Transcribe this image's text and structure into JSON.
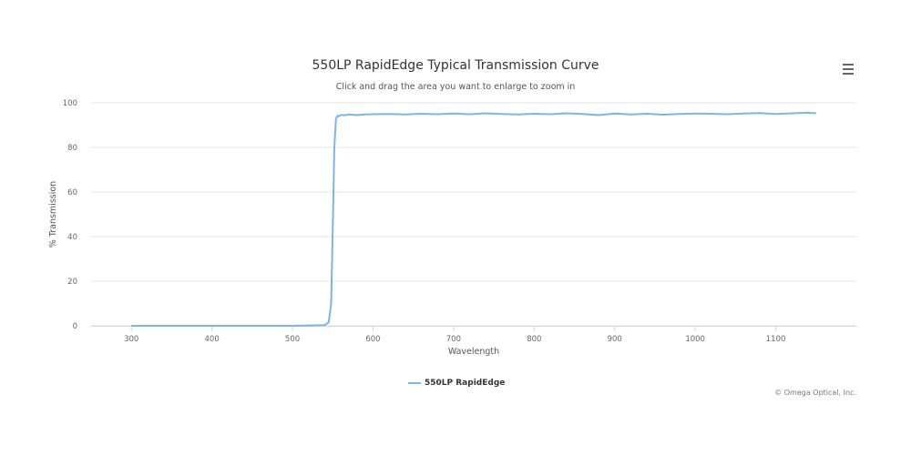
{
  "chart_data": {
    "type": "line",
    "title": "550LP RapidEdge Typical Transmission Curve",
    "subtitle": "Click and drag the area you want to enlarge to zoom in",
    "xlabel": "Wavelength",
    "ylabel": "% Transmission",
    "xlim": [
      250,
      1200
    ],
    "ylim": [
      0,
      100
    ],
    "x_ticks": [
      300,
      400,
      500,
      600,
      700,
      800,
      900,
      1000,
      1100
    ],
    "y_ticks": [
      0,
      20,
      40,
      60,
      80,
      100
    ],
    "grid": "horizontal",
    "legend_position": "bottom-center",
    "series": [
      {
        "name": "550LP RapidEdge",
        "color": "#7cb5ec",
        "x": [
          300,
          400,
          500,
          540,
          545,
          548,
          550,
          552,
          554,
          556,
          558,
          560,
          565,
          570,
          580,
          590,
          600,
          620,
          640,
          660,
          680,
          700,
          720,
          740,
          760,
          780,
          800,
          820,
          840,
          860,
          880,
          900,
          920,
          940,
          960,
          980,
          1000,
          1020,
          1040,
          1060,
          1080,
          1100,
          1120,
          1140,
          1150
        ],
        "y": [
          0,
          0,
          0,
          0.3,
          1.5,
          10,
          45,
          80,
          93,
          94.2,
          94,
          94.6,
          94.4,
          94.8,
          94.5,
          94.8,
          94.9,
          95,
          94.8,
          95.1,
          94.9,
          95.2,
          94.9,
          95.3,
          95,
          94.8,
          95.1,
          94.9,
          95.3,
          95,
          94.5,
          95.2,
          94.8,
          95.1,
          94.7,
          95,
          95.2,
          95.1,
          94.9,
          95.2,
          95.4,
          95,
          95.3,
          95.6,
          95.3
        ]
      }
    ]
  },
  "menu_icon": "hamburger-menu-icon",
  "credits": "© Omega Optical, Inc."
}
